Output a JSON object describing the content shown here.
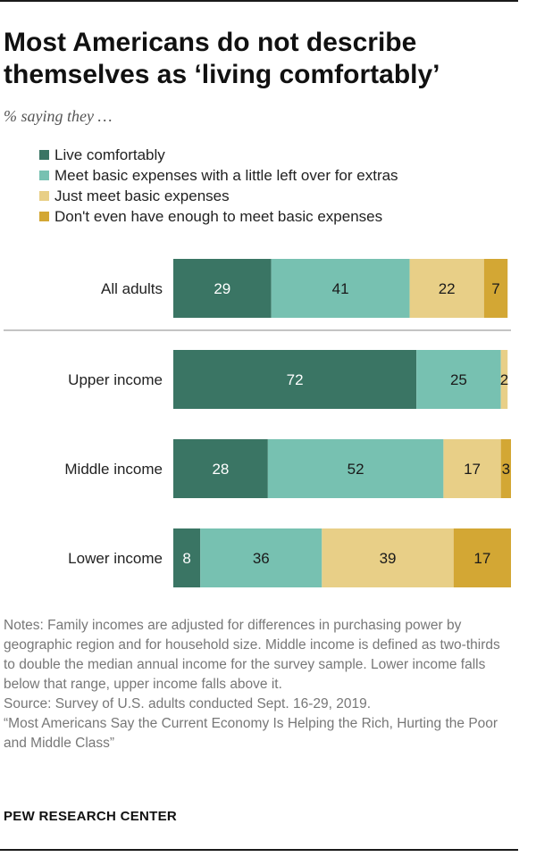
{
  "title": "Most Americans do not describe themselves as ‘living comfortably’",
  "subtitle": "% saying they …",
  "notes": "Notes:  Family incomes are adjusted for differences in purchasing power by geographic region and for household size. Middle income is defined as two-thirds to double the median annual income for the survey sample. Lower income falls below that range, upper income falls above it.",
  "source": "Source: Survey of U.S. adults conducted Sept. 16-29, 2019.",
  "report": "“Most Americans Say the Current Economy Is Helping the Rich, Hurting the Poor and Middle Class”",
  "brand": "PEW RESEARCH CENTER",
  "chart_data": {
    "type": "bar",
    "orientation": "horizontal",
    "stacked": true,
    "title": "Most Americans do not describe themselves as ‘living comfortably’",
    "subtitle": "% saying they …",
    "categories": [
      "All adults",
      "Upper income",
      "Middle income",
      "Lower income"
    ],
    "series": [
      {
        "name": "Live comfortably",
        "color": "#3a7564",
        "labelColor": "#ffffff",
        "values": [
          29,
          72,
          28,
          8
        ]
      },
      {
        "name": "Meet basic expenses with a little left over for extras",
        "color": "#77c1b1",
        "labelColor": "#1a1a1a",
        "values": [
          41,
          25,
          52,
          36
        ]
      },
      {
        "name": "Just meet basic expenses",
        "color": "#e8cf87",
        "labelColor": "#1a1a1a",
        "values": [
          22,
          2,
          17,
          39
        ]
      },
      {
        "name": "Don't even have enough to meet basic expenses",
        "color": "#d3a734",
        "labelColor": "#1a1a1a",
        "values": [
          7,
          null,
          3,
          17
        ]
      }
    ],
    "visible_labels": [
      [
        "29",
        "41",
        "22",
        "7"
      ],
      [
        "72",
        "25",
        "2",
        ""
      ],
      [
        "28",
        "52",
        "17",
        "3"
      ],
      [
        "8",
        "36",
        "39",
        "17"
      ]
    ],
    "xlim": [
      0,
      100
    ],
    "separator_after": "All adults",
    "legend_position": "top-left",
    "grid": false
  }
}
